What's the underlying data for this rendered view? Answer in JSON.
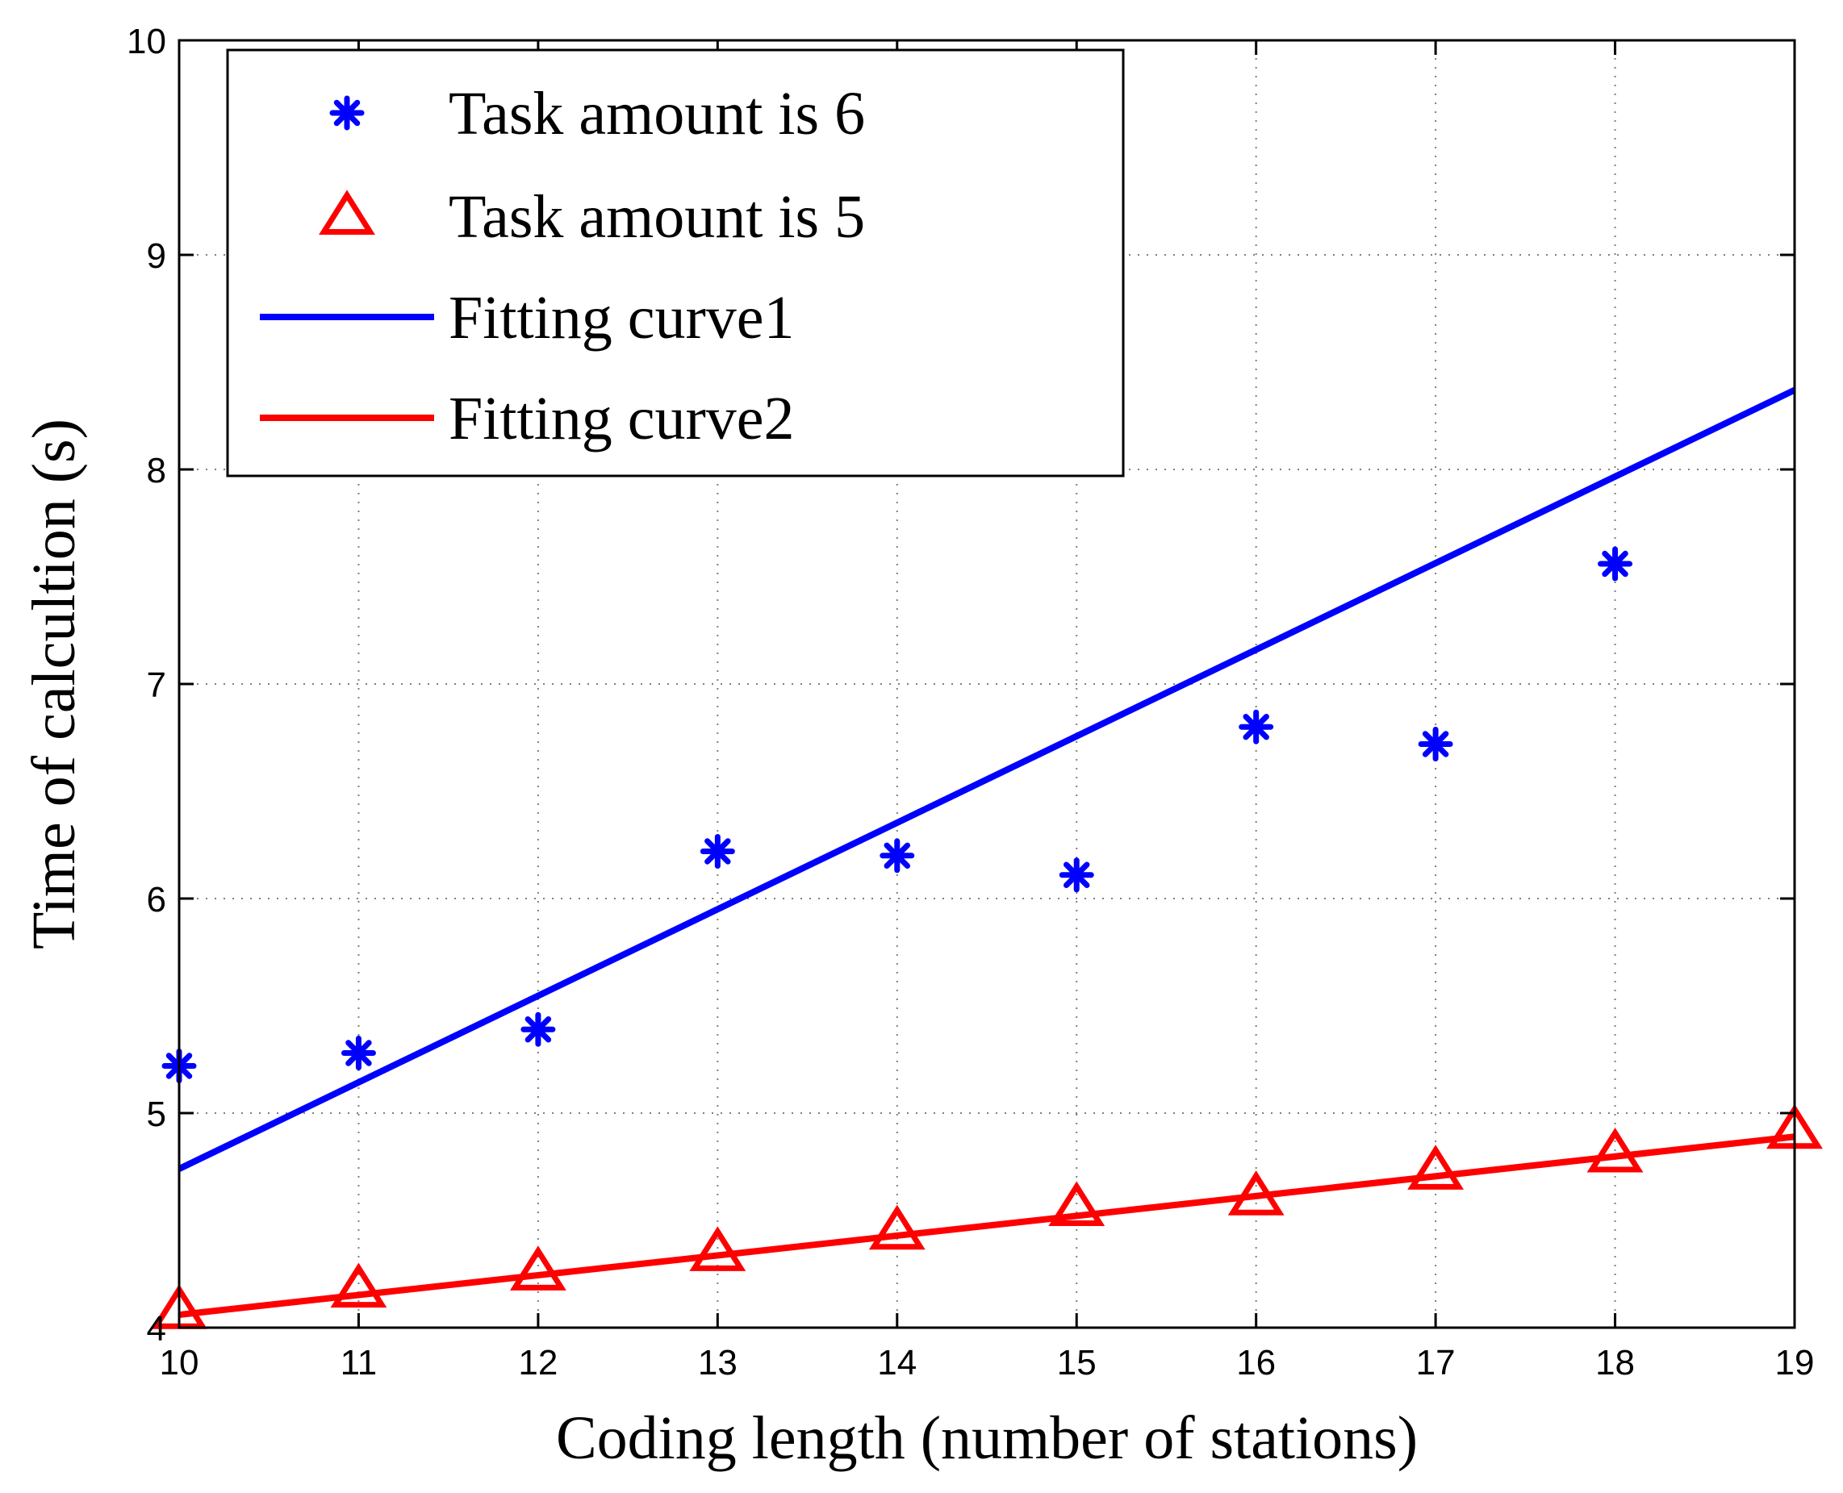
{
  "chart_data": {
    "type": "scatter",
    "title": "",
    "xlabel": "Coding length (number of stations)",
    "ylabel": "Time of calcultion (s)",
    "xlim": [
      10,
      19
    ],
    "ylim": [
      4,
      10
    ],
    "xticks": [
      10,
      11,
      12,
      13,
      14,
      15,
      16,
      17,
      18,
      19
    ],
    "yticks": [
      4,
      5,
      6,
      7,
      8,
      9,
      10
    ],
    "grid": true,
    "legend_position": "top-left",
    "series": [
      {
        "name": "Task amount is 6",
        "kind": "scatter",
        "marker": "asterisk",
        "color": "#0000ff",
        "x": [
          10,
          11,
          12,
          13,
          14,
          15,
          16,
          17,
          18
        ],
        "y": [
          5.22,
          5.28,
          5.39,
          6.22,
          6.2,
          6.11,
          6.8,
          6.72,
          7.56
        ]
      },
      {
        "name": "Task amount is 5",
        "kind": "scatter",
        "marker": "triangle",
        "color": "#ff0000",
        "x": [
          10,
          11,
          12,
          13,
          14,
          15,
          16,
          17,
          18,
          19
        ],
        "y": [
          4.08,
          4.18,
          4.26,
          4.35,
          4.45,
          4.56,
          4.61,
          4.73,
          4.81,
          4.92
        ]
      },
      {
        "name": "Fitting curve1",
        "kind": "line",
        "color": "#0000ff",
        "x": [
          10,
          19
        ],
        "y": [
          4.74,
          8.37
        ]
      },
      {
        "name": "Fitting curve2",
        "kind": "line",
        "color": "#ff0000",
        "x": [
          10,
          19
        ],
        "y": [
          4.06,
          4.89
        ]
      }
    ]
  }
}
